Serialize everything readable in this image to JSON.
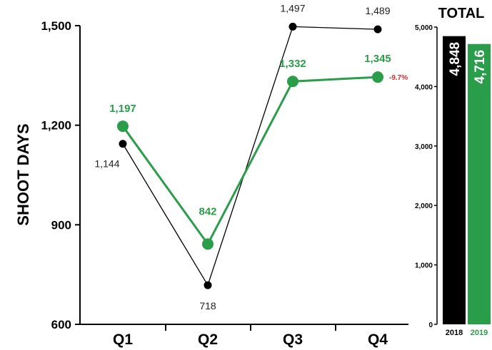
{
  "chart_data": [
    {
      "type": "line",
      "title": "",
      "ylabel": "SHOOT DAYS",
      "xlabel": "",
      "categories": [
        "Q1",
        "Q2",
        "Q3",
        "Q4"
      ],
      "ylim": [
        600,
        1500
      ],
      "yticks": [
        "600",
        "900",
        "1,200",
        "1,500"
      ],
      "ytick_values": [
        600,
        900,
        1200,
        1500
      ],
      "series": [
        {
          "name": "2018",
          "values": [
            1144,
            718,
            1497,
            1489
          ],
          "labels": [
            "1,144",
            "718",
            "1,497",
            "1,489"
          ],
          "color": "#000000"
        },
        {
          "name": "2019",
          "values": [
            1197,
            842,
            1332,
            1345
          ],
          "labels": [
            "1,197",
            "842",
            "1,332",
            "1,345"
          ],
          "color": "#2a9d4a"
        }
      ],
      "annotations": [
        {
          "text": "-9.7%",
          "color": "#d12c2c"
        }
      ],
      "grid": false
    },
    {
      "type": "bar",
      "title": "TOTAL",
      "categories": [
        "2018",
        "2019"
      ],
      "values": [
        4848,
        4716
      ],
      "labels": [
        "4,848",
        "4,716"
      ],
      "colors": [
        "#000000",
        "#2a9d4a"
      ],
      "ylim": [
        0,
        5000
      ],
      "yticks": [
        "0",
        "1,000",
        "2,000",
        "3,000",
        "4,000",
        "5,000"
      ],
      "ytick_values": [
        0,
        1000,
        2000,
        3000,
        4000,
        5000
      ]
    }
  ]
}
